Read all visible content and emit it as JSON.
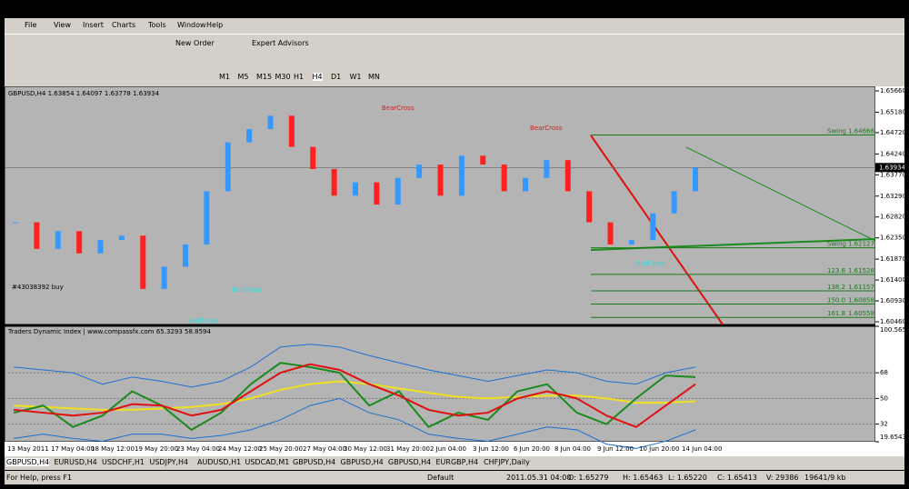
{
  "menu": [
    "File",
    "View",
    "Insert",
    "Charts",
    "Tools",
    "Window",
    "Help"
  ],
  "toolbar": {
    "new_order": "New Order",
    "expert_advisors": "Expert Advisors"
  },
  "timeframes": [
    "M1",
    "M5",
    "M15",
    "M30",
    "H1",
    "H4",
    "D1",
    "W1",
    "MN"
  ],
  "chart_data": [
    {
      "type": "candle",
      "title": "GBPUSD,H4  1.63854 1.64097 1.63778 1.63934",
      "values": [
        1.627,
        1.621,
        1.625,
        1.62,
        1.623,
        1.624,
        1.612,
        1.617,
        1.622,
        1.634,
        1.645,
        1.648,
        1.651,
        1.644,
        1.639,
        1.633,
        1.636,
        1.631,
        1.637,
        1.64,
        1.633,
        1.642,
        1.64,
        1.634,
        1.637,
        1.641,
        1.634,
        1.627,
        1.622,
        1.623,
        1.629,
        1.634,
        1.63934
      ],
      "ylim": [
        1.6046,
        1.6566
      ],
      "yticks": [
        {
          "value": 1.6566,
          "label": "1.65660"
        },
        {
          "value": 1.6518,
          "label": "1.65180"
        },
        {
          "value": 1.6472,
          "label": "1.64720"
        },
        {
          "value": 1.6424,
          "label": "1.64240"
        },
        {
          "value": 1.6377,
          "label": "1.63770"
        },
        {
          "value": 1.6329,
          "label": "1.63290"
        },
        {
          "value": 1.6282,
          "label": "1.62820"
        },
        {
          "value": 1.6235,
          "label": "1.62350"
        },
        {
          "value": 1.6187,
          "label": "1.61870"
        },
        {
          "value": 1.614,
          "label": "1.61400"
        },
        {
          "value": 1.6093,
          "label": "1.60930"
        },
        {
          "value": 1.6046,
          "label": "1.60460"
        }
      ],
      "last_price": 1.63934,
      "levels": [
        {
          "name": "Swing",
          "price": 1.64666
        },
        {
          "name": "Swing",
          "price": 1.62127
        },
        {
          "name": "123.6",
          "price": 1.61528
        },
        {
          "name": "138.2",
          "price": 1.61157
        },
        {
          "name": "150.0",
          "price": 1.60858
        },
        {
          "name": "161.8",
          "price": 1.60558
        }
      ],
      "annotations": [
        "BearCross",
        "BearCross",
        "BullCross",
        "BullCross",
        "BullCross",
        "#43038392 buy"
      ]
    },
    {
      "type": "line",
      "title": "Traders Dynamic Index | www.compassfx.com  65.3293 58.8594",
      "series": [
        {
          "name": "upper",
          "color": "#1e6fd0",
          "values": [
            72,
            70,
            68,
            60,
            65,
            62,
            58,
            62,
            72,
            86,
            88,
            86,
            80,
            75,
            70,
            66,
            62,
            66,
            70,
            68,
            62,
            60,
            68,
            72
          ]
        },
        {
          "name": "lower",
          "color": "#1e6fd0",
          "values": [
            22,
            25,
            22,
            20,
            25,
            25,
            22,
            24,
            28,
            35,
            45,
            50,
            40,
            35,
            25,
            22,
            20,
            25,
            30,
            28,
            18,
            15,
            20,
            28
          ]
        },
        {
          "name": "signal",
          "color": "#f0e020",
          "values": [
            45,
            44,
            43,
            42,
            42,
            43,
            44,
            46,
            50,
            56,
            60,
            62,
            60,
            57,
            54,
            51,
            50,
            51,
            52,
            52,
            50,
            47,
            47,
            48
          ]
        },
        {
          "name": "rsi",
          "color": "#1a8a1a",
          "values": [
            40,
            45,
            30,
            38,
            55,
            45,
            28,
            40,
            60,
            75,
            72,
            68,
            45,
            55,
            30,
            40,
            35,
            55,
            60,
            40,
            32,
            50,
            66,
            65
          ]
        },
        {
          "name": "trade",
          "color": "#e01010",
          "values": [
            42,
            40,
            38,
            40,
            46,
            45,
            38,
            42,
            55,
            68,
            74,
            70,
            60,
            52,
            42,
            38,
            40,
            50,
            55,
            50,
            38,
            30,
            45,
            60
          ]
        }
      ],
      "ylim": [
        19.6543,
        100.5657
      ],
      "yticks": [
        19.6543,
        32,
        50,
        68,
        100.5657
      ]
    }
  ],
  "time_axis": [
    "13 May 2011",
    "17 May 04:00",
    "18 May 12:00",
    "19 May 20:00",
    "23 May 04:00",
    "24 May 12:00",
    "25 May 20:00",
    "27 May 04:00",
    "30 May 12:00",
    "31 May 20:00",
    "2 Jun 04:00",
    "3 Jun 12:00",
    "6 Jun 20:00",
    "8 Jun 04:00",
    "9 Jun 12:00",
    "10 Jun 20:00",
    "14 Jun 04:00"
  ],
  "tabs": [
    "GBPUSD,H4",
    "EURUSD,H4",
    "USDCHF,H1",
    "USDJPY,H4",
    "AUDUSD,H1",
    "USDCAD,M1",
    "GBPUSD,H4",
    "GBPUSD,H4",
    "GBPUSD,H4",
    "EURGBP,H4",
    "CHFJPY,Daily"
  ],
  "status": [
    "For Help, press F1",
    "Default",
    "2011.05.31 04:00",
    "O: 1.65279",
    "H: 1.65463",
    "L: 1.65220",
    "C: 1.65413",
    "V: 29386",
    "19641/9 kb"
  ]
}
